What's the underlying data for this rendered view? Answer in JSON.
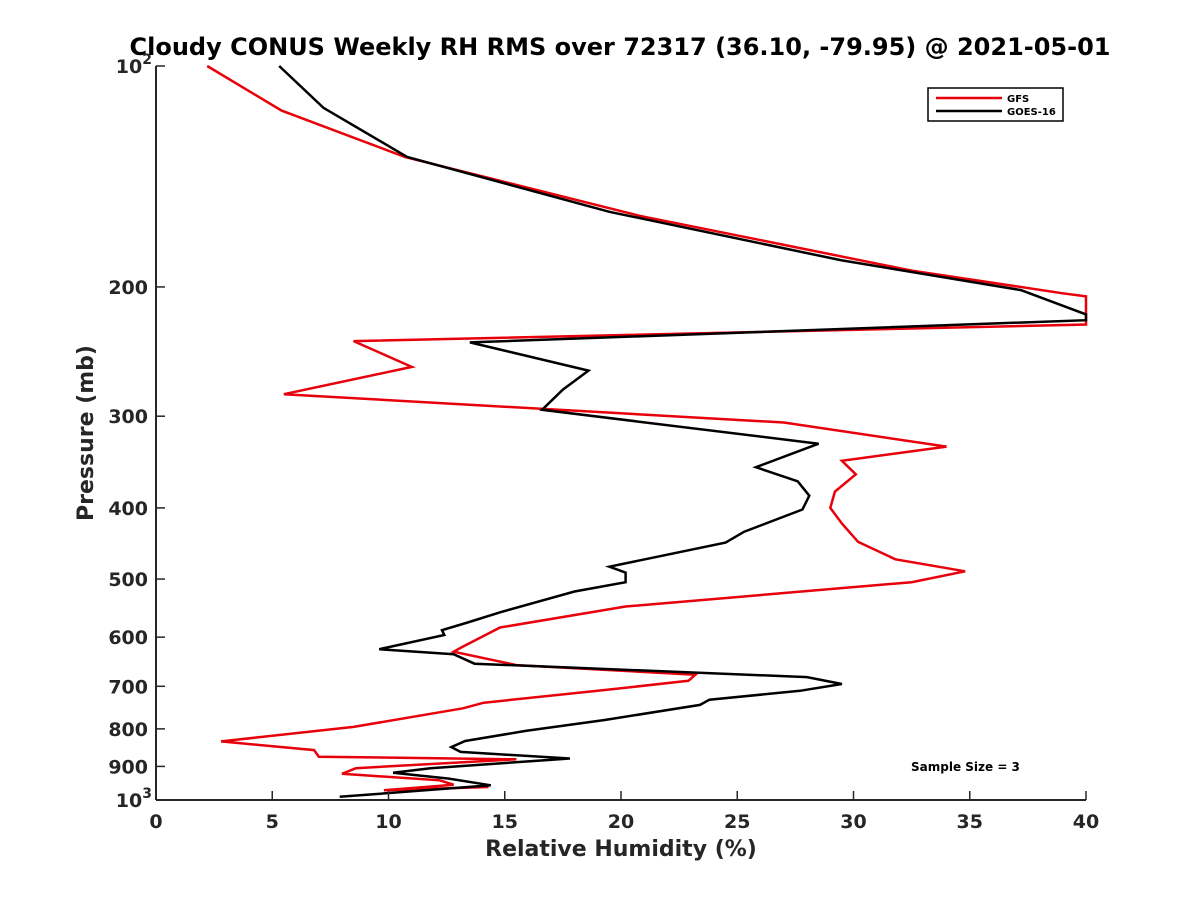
{
  "chart_data": {
    "type": "line",
    "title": "Cloudy CONUS Weekly RH RMS over 72317 (36.10, -79.95) @ 2021-05-01",
    "xlabel": "Relative Humidity (%)",
    "ylabel": "Pressure (mb)",
    "xlim": [
      0,
      40
    ],
    "ylim": [
      100,
      1000
    ],
    "y_scale": "log",
    "y_reversed": true,
    "x_ticks": [
      "0",
      "5",
      "10",
      "15",
      "20",
      "25",
      "30",
      "35",
      "40"
    ],
    "y_ticks": [
      {
        "value": 100,
        "label": "10",
        "sup": "2"
      },
      {
        "value": 200,
        "label": "200"
      },
      {
        "value": 300,
        "label": "300"
      },
      {
        "value": 400,
        "label": "400"
      },
      {
        "value": 500,
        "label": "500"
      },
      {
        "value": 600,
        "label": "600"
      },
      {
        "value": 700,
        "label": "700"
      },
      {
        "value": 800,
        "label": "800"
      },
      {
        "value": 900,
        "label": "900"
      },
      {
        "value": 1000,
        "label": "10",
        "sup": "3"
      }
    ],
    "grid": false,
    "legend_position": "top-right",
    "annotation": "Sample Size = 3",
    "series": [
      {
        "name": "GFS",
        "color": "#e8000b",
        "points": [
          [
            2.2,
            100
          ],
          [
            5.4,
            115
          ],
          [
            10.7,
            133
          ],
          [
            20.8,
            160
          ],
          [
            32.5,
            190
          ],
          [
            39.0,
            204
          ],
          [
            40.0,
            206
          ],
          [
            40.0,
            225
          ],
          [
            8.5,
            237
          ],
          [
            11.0,
            257
          ],
          [
            5.5,
            280
          ],
          [
            27.0,
            306
          ],
          [
            34.0,
            330
          ],
          [
            29.5,
            345
          ],
          [
            30.1,
            360
          ],
          [
            29.2,
            380
          ],
          [
            29.0,
            400
          ],
          [
            29.5,
            420
          ],
          [
            30.2,
            445
          ],
          [
            31.8,
            470
          ],
          [
            34.8,
            488
          ],
          [
            32.5,
            505
          ],
          [
            20.2,
            545
          ],
          [
            14.8,
            582
          ],
          [
            13.2,
            618
          ],
          [
            12.8,
            628
          ],
          [
            15.5,
            655
          ],
          [
            23.2,
            675
          ],
          [
            22.9,
            688
          ],
          [
            19.0,
            710
          ],
          [
            14.1,
            737
          ],
          [
            13.2,
            750
          ],
          [
            8.5,
            795
          ],
          [
            2.8,
            832
          ],
          [
            6.8,
            855
          ],
          [
            7.0,
            873
          ],
          [
            15.5,
            880
          ],
          [
            8.6,
            905
          ],
          [
            8.0,
            921
          ],
          [
            12.2,
            940
          ],
          [
            12.8,
            953
          ],
          [
            9.8,
            970
          ],
          [
            14.3,
            960
          ]
        ]
      },
      {
        "name": "GOES-16",
        "color": "#000000",
        "points": [
          [
            5.3,
            100
          ],
          [
            7.2,
            114
          ],
          [
            10.8,
            133
          ],
          [
            19.5,
            158
          ],
          [
            29.5,
            184
          ],
          [
            37.2,
            202
          ],
          [
            40.0,
            218
          ],
          [
            40.0,
            222
          ],
          [
            13.5,
            238
          ],
          [
            18.6,
            260
          ],
          [
            17.5,
            276
          ],
          [
            16.6,
            294
          ],
          [
            28.5,
            327
          ],
          [
            25.8,
            352
          ],
          [
            27.6,
            368
          ],
          [
            28.1,
            385
          ],
          [
            27.8,
            402
          ],
          [
            25.3,
            431
          ],
          [
            24.5,
            446
          ],
          [
            19.5,
            481
          ],
          [
            20.2,
            490
          ],
          [
            20.2,
            505
          ],
          [
            18.0,
            520
          ],
          [
            14.8,
            555
          ],
          [
            13.4,
            573
          ],
          [
            12.3,
            587
          ],
          [
            12.4,
            596
          ],
          [
            9.6,
            623
          ],
          [
            12.8,
            633
          ],
          [
            13.7,
            652
          ],
          [
            28.0,
            680
          ],
          [
            29.5,
            695
          ],
          [
            27.7,
            710
          ],
          [
            23.8,
            730
          ],
          [
            23.4,
            742
          ],
          [
            19.3,
            778
          ],
          [
            15.9,
            805
          ],
          [
            13.3,
            831
          ],
          [
            12.7,
            847
          ],
          [
            13.1,
            860
          ],
          [
            17.8,
            878
          ],
          [
            11.8,
            905
          ],
          [
            10.2,
            918
          ],
          [
            12.6,
            935
          ],
          [
            14.4,
            955
          ],
          [
            7.9,
            990
          ]
        ]
      }
    ]
  }
}
